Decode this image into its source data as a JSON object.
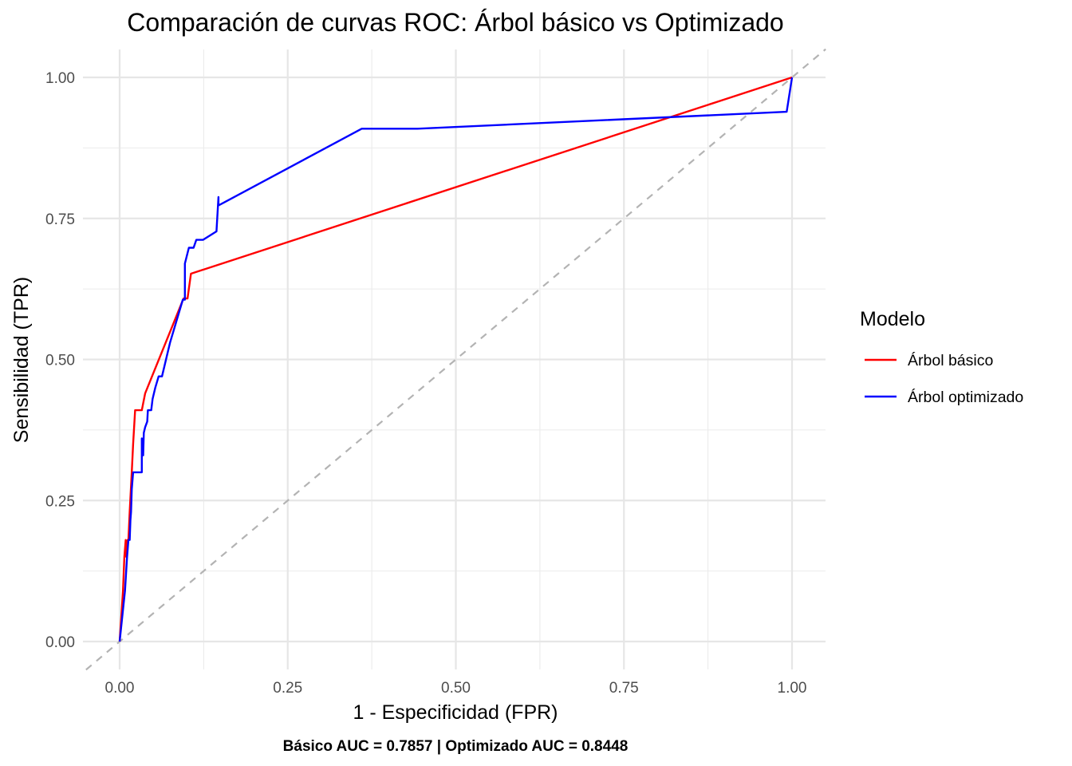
{
  "chart_data": {
    "type": "line",
    "title": "Comparación de curvas ROC: Árbol básico vs Optimizado",
    "xlabel": "1 - Especificidad (FPR)",
    "ylabel": "Sensibilidad (TPR)",
    "caption": "Básico AUC = 0.7857 | Optimizado AUC = 0.8448",
    "xlim": [
      -0.05,
      1.05
    ],
    "ylim": [
      -0.05,
      1.05
    ],
    "x_ticks": [
      "0.00",
      "0.25",
      "0.50",
      "0.75",
      "1.00"
    ],
    "y_ticks": [
      "0.00",
      "0.25",
      "0.50",
      "0.75",
      "1.00"
    ],
    "grid": true,
    "legend": {
      "title": "Modelo",
      "position": "right"
    },
    "reference_line": {
      "style": "dashed",
      "color": "#b3b3b3",
      "slope": 1,
      "intercept": 0
    },
    "series": [
      {
        "name": "Árbol básico",
        "color": "#ff0000",
        "points": [
          [
            0.0,
            0.0
          ],
          [
            0.005,
            0.09
          ],
          [
            0.007,
            0.15
          ],
          [
            0.009,
            0.18
          ],
          [
            0.01,
            0.15
          ],
          [
            0.012,
            0.18
          ],
          [
            0.013,
            0.18
          ],
          [
            0.015,
            0.23
          ],
          [
            0.018,
            0.3
          ],
          [
            0.02,
            0.35
          ],
          [
            0.023,
            0.41
          ],
          [
            0.033,
            0.41
          ],
          [
            0.038,
            0.44
          ],
          [
            0.095,
            0.608
          ],
          [
            0.101,
            0.608
          ],
          [
            0.106,
            0.652
          ],
          [
            1.0,
            1.0
          ]
        ]
      },
      {
        "name": "Árbol optimizado",
        "color": "#0000ff",
        "points": [
          [
            0.0,
            0.0
          ],
          [
            0.008,
            0.09
          ],
          [
            0.011,
            0.15
          ],
          [
            0.013,
            0.18
          ],
          [
            0.015,
            0.18
          ],
          [
            0.016,
            0.215
          ],
          [
            0.017,
            0.23
          ],
          [
            0.018,
            0.27
          ],
          [
            0.02,
            0.3
          ],
          [
            0.033,
            0.3
          ],
          [
            0.033,
            0.36
          ],
          [
            0.035,
            0.33
          ],
          [
            0.036,
            0.37
          ],
          [
            0.038,
            0.38
          ],
          [
            0.041,
            0.39
          ],
          [
            0.042,
            0.41
          ],
          [
            0.047,
            0.41
          ],
          [
            0.049,
            0.43
          ],
          [
            0.053,
            0.45
          ],
          [
            0.058,
            0.47
          ],
          [
            0.063,
            0.47
          ],
          [
            0.075,
            0.53
          ],
          [
            0.094,
            0.606
          ],
          [
            0.097,
            0.606
          ],
          [
            0.097,
            0.67
          ],
          [
            0.103,
            0.698
          ],
          [
            0.11,
            0.698
          ],
          [
            0.114,
            0.712
          ],
          [
            0.124,
            0.712
          ],
          [
            0.144,
            0.727
          ],
          [
            0.147,
            0.788
          ],
          [
            0.147,
            0.773
          ],
          [
            0.36,
            0.909
          ],
          [
            0.443,
            0.909
          ],
          [
            0.992,
            0.939
          ],
          [
            1.0,
            1.0
          ]
        ]
      }
    ]
  }
}
